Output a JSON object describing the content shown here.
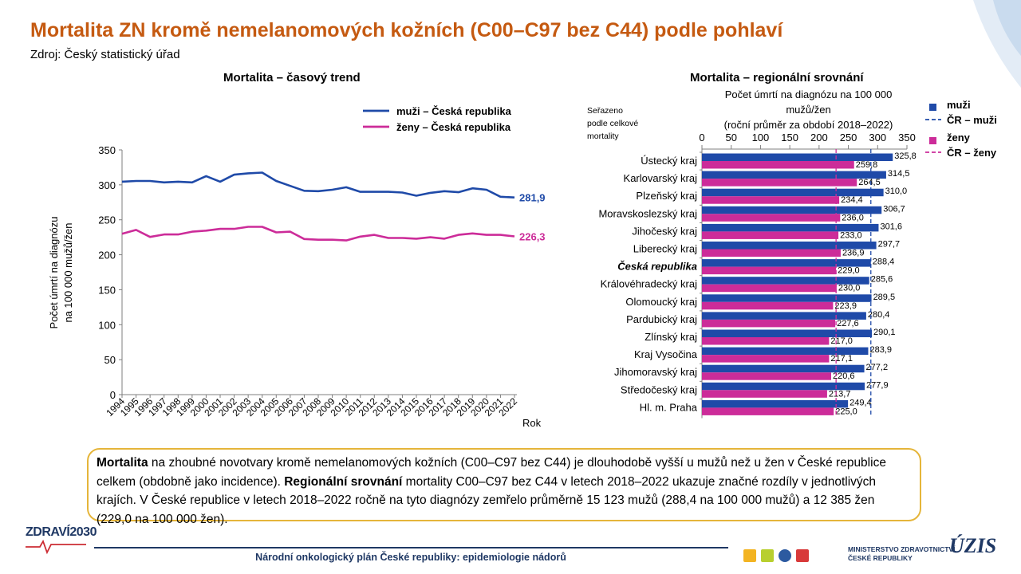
{
  "page": {
    "title": "Mortalita ZN kromě nemelanomových kožních (C00–C97 bez C44) podle pohlaví",
    "source": "Zdroj: Český statistický úřad"
  },
  "colors": {
    "men": "#1f4aa8",
    "women": "#cc2c99",
    "title": "#c55a11",
    "box_border": "#e5b53a",
    "navy": "#1f3864"
  },
  "chart_data": [
    {
      "type": "line",
      "title": "Mortalita – časový trend",
      "xlabel": "Rok",
      "ylabel_lines": [
        "Počet úmrtí  na diagnózu",
        "na 100 000 mužů/žen"
      ],
      "ylim": [
        0,
        350
      ],
      "yticks": [
        0,
        50,
        100,
        150,
        200,
        250,
        300,
        350
      ],
      "grid": false,
      "legend_position": "top-right",
      "x": [
        "1994",
        "1995",
        "1996",
        "1997",
        "1998",
        "1999",
        "2000",
        "2001",
        "2002",
        "2003",
        "2004",
        "2005",
        "2006",
        "2007",
        "2008",
        "2009",
        "2010",
        "2011",
        "2012",
        "2013",
        "2014",
        "2015",
        "2016",
        "2017",
        "2018",
        "2019",
        "2020",
        "2021",
        "2022"
      ],
      "series": [
        {
          "name": "muži – Česká republika",
          "legend_bold": "muži",
          "legend_rest": " – Česká republika",
          "color": "#1f4aa8",
          "end_label": "281,9",
          "values": [
            304.5,
            305.5,
            305.5,
            303.5,
            304.5,
            303.5,
            312.5,
            304.5,
            314.5,
            316.5,
            317.5,
            305.5,
            298.5,
            291.5,
            291,
            293,
            296.5,
            290,
            290,
            290,
            289,
            284.5,
            288.5,
            291,
            289.5,
            295,
            293,
            283,
            281.9
          ]
        },
        {
          "name": "ženy – Česká republika",
          "legend_bold": "ženy",
          "legend_rest": " – Česká republika",
          "color": "#cc2c99",
          "end_label": "226,3",
          "values": [
            230,
            235.5,
            225.5,
            229,
            229,
            233,
            234.5,
            237,
            237,
            240,
            240,
            232,
            233,
            222.5,
            221.5,
            221.5,
            220.5,
            226,
            228.5,
            224,
            224,
            223,
            225,
            223,
            228.5,
            230.5,
            228.5,
            228.5,
            226.3
          ]
        }
      ]
    },
    {
      "type": "bar",
      "orientation": "horizontal",
      "title": "Mortalita – regionální srovnání",
      "axis_title_lines": [
        "Počet úmrtí  na diagnózu na 100 000",
        "mužů/žen",
        "(roční průměr  za období 2018–2022)"
      ],
      "sort_note_lines": [
        "Seřazeno",
        "podle celkové",
        "mortality"
      ],
      "xlim": [
        0,
        350
      ],
      "xticks": [
        "0",
        "50",
        "100",
        "150",
        "200",
        "250",
        "300",
        "350"
      ],
      "highlight_category": "Česká republika",
      "categories": [
        "Ústecký kraj",
        "Karlovarský kraj",
        "Plzeňský kraj",
        "Moravskoslezský kraj",
        "Jihočeský kraj",
        "Liberecký kraj",
        "Česká republika",
        "Královéhradecký kraj",
        "Olomoucký kraj",
        "Pardubický kraj",
        "Zlínský kraj",
        "Kraj Vysočina",
        "Jihomoravský kraj",
        "Středočeský kraj",
        "Hl. m. Praha"
      ],
      "series": [
        {
          "name": "muži",
          "color": "#1f4aa8",
          "values": [
            325.8,
            314.5,
            310.0,
            306.7,
            301.6,
            297.7,
            288.4,
            285.6,
            289.5,
            280.4,
            290.1,
            283.9,
            277.2,
            277.9,
            249.4
          ],
          "labels": [
            "325,8",
            "314,5",
            "310,0",
            "306,7",
            "301,6",
            "297,7",
            "288,4",
            "285,6",
            "289,5",
            "280,4",
            "290,1",
            "283,9",
            "277,2",
            "277,9",
            "249,4"
          ]
        },
        {
          "name": "ženy",
          "color": "#cc2c99",
          "values": [
            259.8,
            264.5,
            234.4,
            236.0,
            233.0,
            236.9,
            229.0,
            230.0,
            223.9,
            227.6,
            217.0,
            217.1,
            220.6,
            213.7,
            225.0
          ],
          "labels": [
            "259,8",
            "264,5",
            "234,4",
            "236,0",
            "233,0",
            "236,9",
            "229,0",
            "230,0",
            "223,9",
            "227,6",
            "217,0",
            "217,1",
            "220,6",
            "213,7",
            "225,0"
          ]
        }
      ],
      "reference_lines": [
        {
          "name": "ČR – muži",
          "value": 288.4,
          "color": "#1f4aa8"
        },
        {
          "name": "ČR – ženy",
          "value": 229.0,
          "color": "#cc2c99"
        }
      ]
    }
  ],
  "summary": {
    "bold1": "Mortalita",
    "text1": " na zhoubné novotvary kromě nemelanomových kožních (C00–C97 bez C44) je dlouhodobě vyšší u mužů než u žen v České republice celkem (obdobně jako incidence). ",
    "bold2": "Regionální srovnání",
    "text2": " mortality C00–C97 bez C44 v letech 2018–2022 ukazuje značné rozdíly v jednotlivých krajích. V České republice v letech 2018–2022 ročně na tyto diagnózy zemřelo průměrně 15 123 mužů (288,4 na 100 000 mužů) a 12 385 žen (229,0 na 100 000 žen)."
  },
  "footer": {
    "text": "Národní onkologický plán České republiky: epidemiologie nádorů",
    "logo_left": "ZDRAVÍ2030",
    "ministry_lines": [
      "MINISTERSTVO ZDRAVOTNICTVÍ",
      "ČESKÉ REPUBLIKY"
    ],
    "logo_right": "ÚZIS"
  }
}
